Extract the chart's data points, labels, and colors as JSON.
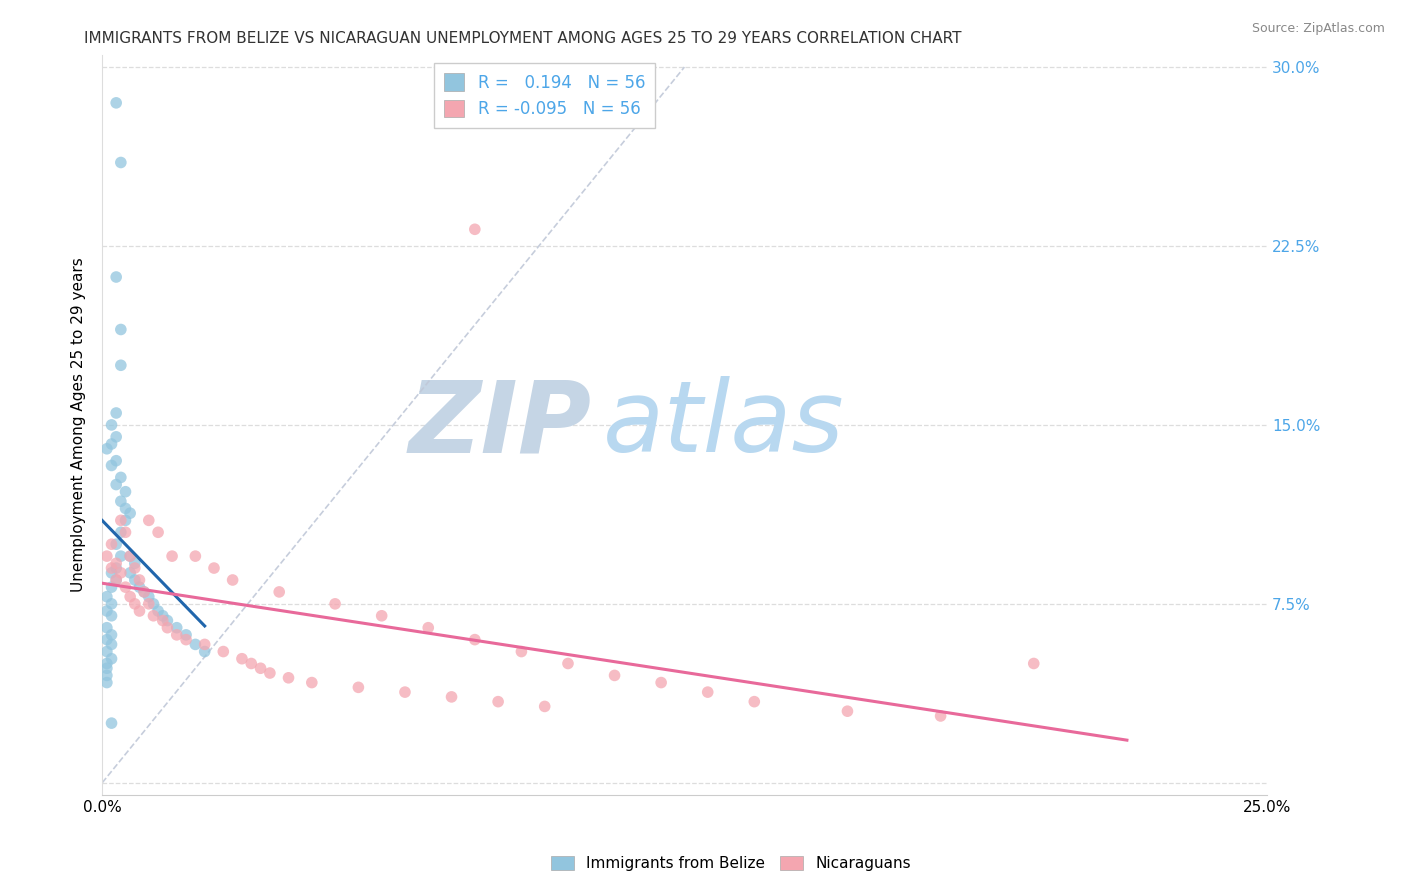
{
  "title": "IMMIGRANTS FROM BELIZE VS NICARAGUAN UNEMPLOYMENT AMONG AGES 25 TO 29 YEARS CORRELATION CHART",
  "source": "Source: ZipAtlas.com",
  "ylabel": "Unemployment Among Ages 25 to 29 years",
  "xlim": [
    0.0,
    0.25
  ],
  "ylim": [
    -0.005,
    0.305
  ],
  "xticks": [
    0.0,
    0.05,
    0.1,
    0.15,
    0.2,
    0.25
  ],
  "xticklabels": [
    "0.0%",
    "",
    "",
    "",
    "",
    "25.0%"
  ],
  "yticks": [
    0.0,
    0.075,
    0.15,
    0.225,
    0.3
  ],
  "yticklabels_right": [
    "",
    "7.5%",
    "15.0%",
    "22.5%",
    "30.0%"
  ],
  "r_belize": 0.194,
  "n_belize": 56,
  "r_nicaraguan": -0.095,
  "n_nicaraguan": 56,
  "belize_scatter_color": "#92c5de",
  "nicaraguan_scatter_color": "#f4a6b0",
  "belize_trend_color": "#2166ac",
  "nicaraguan_trend_color": "#e8699a",
  "diagonal_color": "#c0c8d8",
  "watermark_zip_color": "#c8d8e8",
  "watermark_atlas_color": "#b8d4ec",
  "legend_label_belize": "Immigrants from Belize",
  "legend_label_nicaraguan": "Nicaraguans",
  "right_axis_color": "#4da6e8",
  "grid_color": "#dddddd",
  "background": "#ffffff",
  "title_fontsize": 11,
  "label_fontsize": 11,
  "tick_fontsize": 11,
  "source_fontsize": 9,
  "belize_x": [
    0.003,
    0.004,
    0.003,
    0.004,
    0.004,
    0.003,
    0.002,
    0.003,
    0.002,
    0.001,
    0.003,
    0.002,
    0.004,
    0.003,
    0.005,
    0.004,
    0.005,
    0.006,
    0.005,
    0.004,
    0.003,
    0.004,
    0.003,
    0.002,
    0.003,
    0.002,
    0.001,
    0.002,
    0.001,
    0.002,
    0.001,
    0.002,
    0.001,
    0.002,
    0.001,
    0.002,
    0.001,
    0.001,
    0.001,
    0.001,
    0.006,
    0.007,
    0.006,
    0.007,
    0.008,
    0.009,
    0.01,
    0.011,
    0.012,
    0.013,
    0.014,
    0.016,
    0.018,
    0.02,
    0.022,
    0.002
  ],
  "belize_y": [
    0.285,
    0.26,
    0.212,
    0.19,
    0.175,
    0.155,
    0.15,
    0.145,
    0.142,
    0.14,
    0.135,
    0.133,
    0.128,
    0.125,
    0.122,
    0.118,
    0.115,
    0.113,
    0.11,
    0.105,
    0.1,
    0.095,
    0.09,
    0.088,
    0.085,
    0.082,
    0.078,
    0.075,
    0.072,
    0.07,
    0.065,
    0.062,
    0.06,
    0.058,
    0.055,
    0.052,
    0.05,
    0.048,
    0.045,
    0.042,
    0.095,
    0.092,
    0.088,
    0.085,
    0.082,
    0.08,
    0.078,
    0.075,
    0.072,
    0.07,
    0.068,
    0.065,
    0.062,
    0.058,
    0.055,
    0.025
  ],
  "nicaraguan_x": [
    0.001,
    0.002,
    0.002,
    0.003,
    0.003,
    0.004,
    0.004,
    0.005,
    0.005,
    0.006,
    0.006,
    0.007,
    0.007,
    0.008,
    0.008,
    0.009,
    0.01,
    0.01,
    0.011,
    0.012,
    0.013,
    0.014,
    0.015,
    0.016,
    0.018,
    0.02,
    0.022,
    0.024,
    0.026,
    0.028,
    0.03,
    0.032,
    0.034,
    0.036,
    0.038,
    0.04,
    0.045,
    0.05,
    0.055,
    0.06,
    0.065,
    0.07,
    0.075,
    0.08,
    0.085,
    0.09,
    0.095,
    0.1,
    0.11,
    0.12,
    0.13,
    0.14,
    0.16,
    0.18,
    0.2,
    0.08
  ],
  "nicaraguan_y": [
    0.095,
    0.1,
    0.09,
    0.092,
    0.085,
    0.11,
    0.088,
    0.105,
    0.082,
    0.095,
    0.078,
    0.09,
    0.075,
    0.085,
    0.072,
    0.08,
    0.11,
    0.075,
    0.07,
    0.105,
    0.068,
    0.065,
    0.095,
    0.062,
    0.06,
    0.095,
    0.058,
    0.09,
    0.055,
    0.085,
    0.052,
    0.05,
    0.048,
    0.046,
    0.08,
    0.044,
    0.042,
    0.075,
    0.04,
    0.07,
    0.038,
    0.065,
    0.036,
    0.06,
    0.034,
    0.055,
    0.032,
    0.05,
    0.045,
    0.042,
    0.038,
    0.034,
    0.03,
    0.028,
    0.05,
    0.232
  ]
}
